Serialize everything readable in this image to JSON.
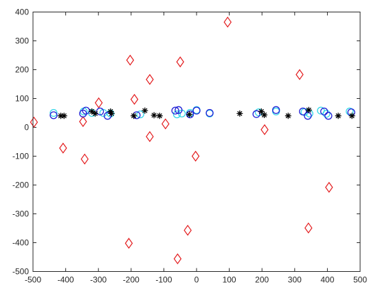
{
  "chart_data": {
    "type": "scatter",
    "xlim": [
      -500,
      500
    ],
    "ylim": [
      -500,
      400
    ],
    "xticks": [
      -500,
      -400,
      -300,
      -200,
      -100,
      0,
      100,
      200,
      300,
      400,
      500
    ],
    "yticks": [
      -500,
      -400,
      -300,
      -200,
      -100,
      0,
      100,
      200,
      300,
      400
    ],
    "grid": false,
    "legend": "none",
    "series": [
      {
        "marker": "diamond",
        "color": "#e31a1c",
        "points": [
          [
            -497,
            18
          ],
          [
            -408,
            -72
          ],
          [
            -347,
            20
          ],
          [
            -342,
            -110
          ],
          [
            -299,
            85
          ],
          [
            -203,
            233
          ],
          [
            -190,
            97
          ],
          [
            -207,
            -402
          ],
          [
            -143,
            166
          ],
          [
            -143,
            -32
          ],
          [
            -95,
            12
          ],
          [
            -50,
            227
          ],
          [
            -58,
            -456
          ],
          [
            -27,
            -357
          ],
          [
            -3,
            -100
          ],
          [
            95,
            365
          ],
          [
            208,
            -8
          ],
          [
            315,
            183
          ],
          [
            342,
            -349
          ],
          [
            405,
            -208
          ]
        ]
      },
      {
        "marker": "circle",
        "color": "#33d6e8",
        "points": [
          [
            -437,
            50
          ],
          [
            -345,
            55
          ],
          [
            -320,
            50
          ],
          [
            -285,
            50
          ],
          [
            -263,
            48
          ],
          [
            -172,
            45
          ],
          [
            -60,
            45
          ],
          [
            -45,
            48
          ],
          [
            -20,
            50
          ],
          [
            0,
            60
          ],
          [
            40,
            48
          ],
          [
            190,
            52
          ],
          [
            243,
            55
          ],
          [
            330,
            53
          ],
          [
            345,
            48
          ],
          [
            380,
            58
          ],
          [
            397,
            47
          ],
          [
            468,
            55
          ]
        ]
      },
      {
        "marker": "circle",
        "color": "#1f1fd6",
        "points": [
          [
            -437,
            42
          ],
          [
            -347,
            48
          ],
          [
            -338,
            58
          ],
          [
            -295,
            55
          ],
          [
            -272,
            40
          ],
          [
            -183,
            42
          ],
          [
            -65,
            58
          ],
          [
            -55,
            60
          ],
          [
            -20,
            45
          ],
          [
            0,
            58
          ],
          [
            40,
            50
          ],
          [
            183,
            46
          ],
          [
            243,
            60
          ],
          [
            325,
            55
          ],
          [
            340,
            40
          ],
          [
            390,
            55
          ],
          [
            403,
            40
          ],
          [
            473,
            52
          ]
        ]
      },
      {
        "marker": "star",
        "color": "#000000",
        "points": [
          [
            -415,
            40
          ],
          [
            -405,
            40
          ],
          [
            -320,
            55
          ],
          [
            -310,
            48
          ],
          [
            -263,
            55
          ],
          [
            -260,
            48
          ],
          [
            -192,
            40
          ],
          [
            -158,
            58
          ],
          [
            -130,
            42
          ],
          [
            -113,
            40
          ],
          [
            -22,
            45
          ],
          [
            132,
            48
          ],
          [
            198,
            55
          ],
          [
            207,
            43
          ],
          [
            280,
            40
          ],
          [
            343,
            60
          ],
          [
            433,
            40
          ],
          [
            475,
            40
          ]
        ]
      }
    ]
  }
}
